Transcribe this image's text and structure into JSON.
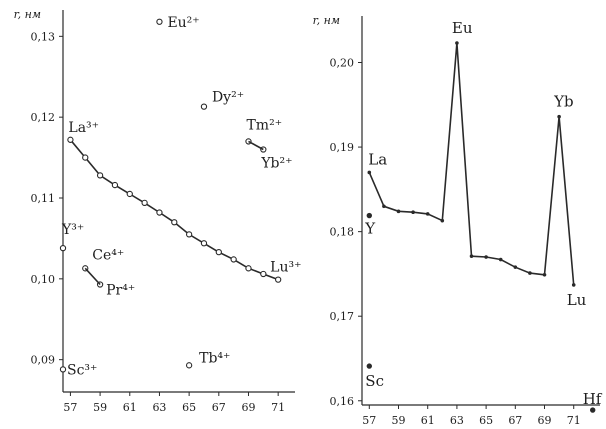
{
  "chart_data": [
    {
      "type": "scatter",
      "ylabel": "r, нм",
      "xlim": [
        56.5,
        72
      ],
      "ylim": [
        0.086,
        0.134
      ],
      "x_ticks": [
        57,
        59,
        61,
        63,
        65,
        67,
        69,
        71
      ],
      "y_ticks": [
        0.09,
        0.1,
        0.11,
        0.12,
        0.13
      ],
      "y_tick_labels": [
        "0,09",
        "0,10",
        "0,11",
        "0,12",
        "0,13"
      ],
      "series": [
        {
          "x": [
            57,
            58,
            59,
            60,
            61,
            62,
            63,
            64,
            65,
            66,
            67,
            68,
            69,
            70,
            71
          ],
          "y": [
            0.1172,
            0.115,
            0.1128,
            0.1116,
            0.1105,
            0.1094,
            0.1082,
            0.107,
            0.1055,
            0.1044,
            0.1033,
            0.1024,
            0.1013,
            0.1006,
            0.0999
          ],
          "style": "line-with-open-markers"
        }
      ],
      "points": [
        {
          "label": "Eu²⁺",
          "x": 63,
          "y": 0.1318
        },
        {
          "label": "Dy²⁺",
          "x": 66,
          "y": 0.1213
        },
        {
          "label": "Tm²⁺",
          "x": 69,
          "y": 0.117
        },
        {
          "label": "Yb²⁺",
          "x": 70,
          "y": 0.116
        },
        {
          "label": "Y³⁺",
          "x": 56.5,
          "y": 0.1038
        },
        {
          "label": "Ce⁴⁺",
          "x": 58,
          "y": 0.1013
        },
        {
          "label": "Pr⁴⁺",
          "x": 59,
          "y": 0.0993
        },
        {
          "label": "Sc³⁺",
          "x": 56.5,
          "y": 0.0888
        },
        {
          "label": "Tb⁴⁺",
          "x": 65,
          "y": 0.0893
        }
      ],
      "annotations": [
        "La³⁺",
        "Lu³⁺"
      ]
    },
    {
      "type": "line",
      "ylabel": "r, нм",
      "xlim": [
        56.5,
        72.8
      ],
      "ylim": [
        0.1595,
        0.2055
      ],
      "x_ticks": [
        57,
        59,
        61,
        63,
        65,
        67,
        69,
        71
      ],
      "y_ticks": [
        0.16,
        0.17,
        0.18,
        0.19,
        0.2
      ],
      "y_tick_labels": [
        "0,16",
        "0,17",
        "0,18",
        "0,19",
        "0,20"
      ],
      "series": [
        {
          "x": [
            57,
            58,
            59,
            60,
            61,
            62,
            63,
            64,
            65,
            66,
            67,
            68,
            69,
            70,
            71
          ],
          "y": [
            0.187,
            0.183,
            0.1824,
            0.1823,
            0.1821,
            0.1813,
            0.2023,
            0.1771,
            0.177,
            0.1767,
            0.1758,
            0.1751,
            0.1749,
            0.1936,
            0.1737
          ],
          "style": "line"
        }
      ],
      "points": [
        {
          "label": "Y",
          "x": 57,
          "y": 0.1819
        },
        {
          "label": "Sc",
          "x": 57,
          "y": 0.1641
        },
        {
          "label": "Hf",
          "x": 72.3,
          "y": 0.1589
        }
      ],
      "annotations": [
        "La",
        "Eu",
        "Yb",
        "Lu"
      ]
    }
  ]
}
